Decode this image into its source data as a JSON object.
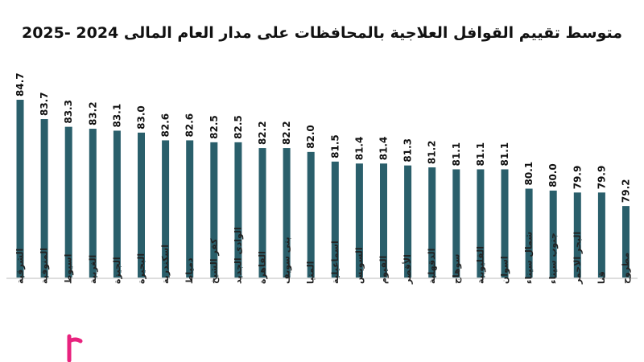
{
  "chart_data": {
    "type": "bar",
    "title": "متوسط تقييم القوافل العلاجية بالمحافظات على مدار العام المالى 2024 -2025",
    "categories": [
      "الشرقية",
      "المنوفية",
      "اسيوط",
      "الغربية",
      "الجيزة",
      "البحيرة",
      "اسكندرية",
      "دمياط",
      "كفر الشيخ",
      "الوادى الجديد",
      "القاهرة",
      "بنى سويف",
      "المنيا",
      "اسماعيلية",
      "السويس",
      "الفيوم",
      "الأقصر",
      "الدقهلية",
      "سوهاج",
      "القليوبية",
      "اسوان",
      "شمال سيناء",
      "جنوب سيناء",
      "البحر الاحمر",
      "قنا",
      "مطروح"
    ],
    "values": [
      84.7,
      83.7,
      83.3,
      83.2,
      83.1,
      83.0,
      82.6,
      82.6,
      82.5,
      82.5,
      82.2,
      82.2,
      82.0,
      81.5,
      81.4,
      81.4,
      81.3,
      81.2,
      81.1,
      81.1,
      81.1,
      80.1,
      80.0,
      79.9,
      79.9,
      79.2
    ],
    "xlabel": "",
    "ylabel": "",
    "ylim": [
      75.5,
      85.2
    ],
    "grid": false,
    "legend": "none",
    "bar_color": "#2a5f6b",
    "axis_color": "#bbbbbb"
  },
  "decoration": {
    "pink_mark_color": "#e8227e"
  }
}
